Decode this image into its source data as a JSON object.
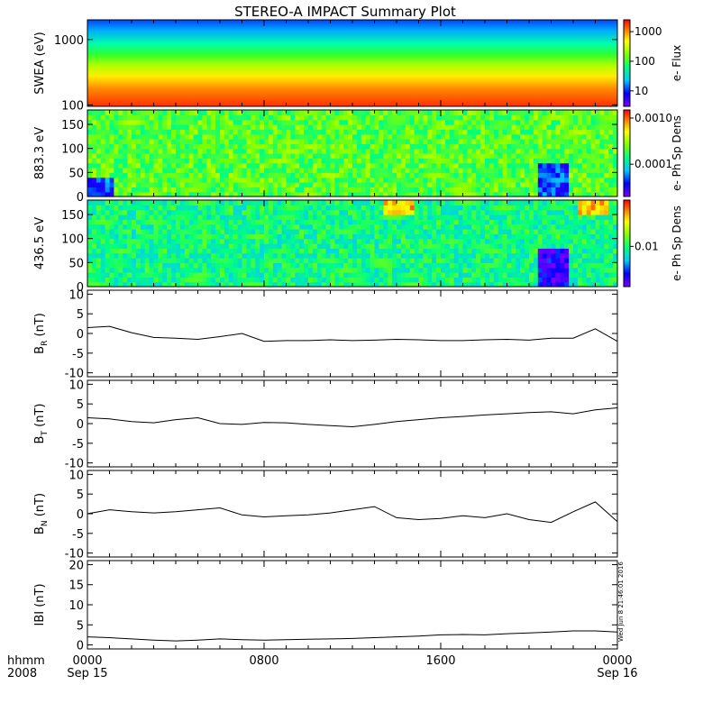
{
  "title": "STEREO-A IMPACT Summary Plot",
  "footer": {
    "time_label": "hhmm",
    "year_label": "2008",
    "timestamp": "Wed Jun  8 21:46:01 2016"
  },
  "chart_data": [
    {
      "type": "heatmap",
      "id": "swea",
      "ylabel": "SWEA (eV)",
      "ylog": true,
      "ylim": [
        95,
        2000
      ],
      "yticks": [
        100,
        1000
      ],
      "ytick_labels": [
        "100",
        "1000"
      ],
      "colorbar": {
        "label": "e- Flux",
        "log": true,
        "range": [
          3,
          2500
        ],
        "ticks": [
          10,
          100,
          1000
        ],
        "tick_labels": [
          "10",
          "100",
          "1000"
        ]
      },
      "description_of_values": "flux decreases smoothly with energy; ~1500 near 100 eV, ~200 at 400 eV, ~10 near 2000 eV",
      "energy_profile": [
        {
          "energy": 100,
          "flux": 1500
        },
        {
          "energy": 200,
          "flux": 600
        },
        {
          "energy": 400,
          "flux": 150
        },
        {
          "energy": 800,
          "flux": 50
        },
        {
          "energy": 1500,
          "flux": 12
        },
        {
          "energy": 2000,
          "flux": 6
        }
      ]
    },
    {
      "type": "heatmap",
      "id": "pad883",
      "ylabel": "883.3 eV",
      "ylim": [
        0,
        180
      ],
      "yticks": [
        0,
        50,
        100,
        150
      ],
      "ytick_labels": [
        "0",
        "50",
        "100",
        "150"
      ],
      "colorbar": {
        "label": "e- Ph Sp Dens",
        "log": true,
        "range": [
          2e-05,
          0.0015
        ],
        "ticks": [
          0.0001,
          0.001
        ],
        "tick_labels": [
          "0.0001",
          "0.0010"
        ]
      },
      "features": [
        {
          "x_hours": 21,
          "pitch_range": [
            0,
            70
          ],
          "level": "low"
        },
        {
          "x_hours": 0.5,
          "pitch_range": [
            0,
            40
          ],
          "level": "low"
        }
      ]
    },
    {
      "type": "heatmap",
      "id": "pad436",
      "ylabel": "436.5 eV",
      "ylim": [
        0,
        180
      ],
      "yticks": [
        0,
        50,
        100,
        150
      ],
      "ytick_labels": [
        "0",
        "50",
        "100",
        "150"
      ],
      "colorbar": {
        "label": "e- Ph Sp Dens",
        "log": true,
        "range": [
          0.003,
          0.04
        ],
        "ticks": [
          0.01
        ],
        "tick_labels": [
          "0.01"
        ]
      },
      "features": [
        {
          "x_hours": 21,
          "pitch_range": [
            0,
            80
          ],
          "level": "low"
        },
        {
          "x_hours": 22.8,
          "pitch_range": [
            150,
            180
          ],
          "level": "high"
        },
        {
          "x_hours": 14,
          "pitch_range": [
            150,
            180
          ],
          "level": "high"
        }
      ]
    },
    {
      "type": "line",
      "id": "br",
      "ylabel": "B",
      "ylabel_sub": "R",
      "ylabel_unit": " (nT)",
      "ylim": [
        -11,
        11
      ],
      "yticks": [
        -10,
        -5,
        0,
        5,
        10
      ],
      "ytick_labels": [
        "-10",
        "-5",
        "0",
        "5",
        "10"
      ],
      "x_hours": [
        0,
        1,
        2,
        3,
        4,
        5,
        6,
        7,
        8,
        9,
        10,
        11,
        12,
        13,
        14,
        15,
        16,
        17,
        18,
        19,
        20,
        21,
        22,
        23,
        24
      ],
      "values": [
        1.5,
        1.8,
        0.2,
        -1.0,
        -1.2,
        -1.5,
        -0.8,
        0.0,
        -2.0,
        -1.8,
        -1.8,
        -1.6,
        -1.8,
        -1.7,
        -1.5,
        -1.6,
        -1.8,
        -1.8,
        -1.6,
        -1.5,
        -1.7,
        -1.2,
        -1.2,
        1.2,
        -2.0
      ]
    },
    {
      "type": "line",
      "id": "bt",
      "ylabel": "B",
      "ylabel_sub": "T",
      "ylabel_unit": " (nT)",
      "ylim": [
        -11,
        11
      ],
      "yticks": [
        -10,
        -5,
        0,
        5,
        10
      ],
      "ytick_labels": [
        "-10",
        "-5",
        "0",
        "5",
        "10"
      ],
      "x_hours": [
        0,
        1,
        2,
        3,
        4,
        5,
        6,
        7,
        8,
        9,
        10,
        11,
        12,
        13,
        14,
        15,
        16,
        17,
        18,
        19,
        20,
        21,
        22,
        23,
        24
      ],
      "values": [
        1.5,
        1.2,
        0.5,
        0.2,
        1.0,
        1.5,
        0.0,
        -0.2,
        0.3,
        0.2,
        -0.2,
        -0.5,
        -0.8,
        -0.2,
        0.5,
        1.0,
        1.5,
        1.8,
        2.2,
        2.5,
        2.8,
        3.0,
        2.5,
        3.5,
        4.0
      ]
    },
    {
      "type": "line",
      "id": "bn",
      "ylabel": "B",
      "ylabel_sub": "N",
      "ylabel_unit": " (nT)",
      "ylim": [
        -11,
        11
      ],
      "yticks": [
        -10,
        -5,
        0,
        5,
        10
      ],
      "ytick_labels": [
        "-10",
        "-5",
        "0",
        "5",
        "10"
      ],
      "x_hours": [
        0,
        1,
        2,
        3,
        4,
        5,
        6,
        7,
        8,
        9,
        10,
        11,
        12,
        13,
        14,
        15,
        16,
        17,
        18,
        19,
        20,
        21,
        22,
        23,
        24
      ],
      "values": [
        0.0,
        1.0,
        0.5,
        0.2,
        0.5,
        1.0,
        1.5,
        -0.3,
        -0.8,
        -0.5,
        -0.3,
        0.2,
        1.0,
        1.8,
        -1.0,
        -1.5,
        -1.2,
        -0.5,
        -1.0,
        0.0,
        -1.5,
        -2.2,
        0.5,
        3.0,
        -2.0
      ]
    },
    {
      "type": "line",
      "id": "bmag",
      "ylabel": "IBI (nT)",
      "ylim": [
        -1,
        21
      ],
      "yticks": [
        0,
        5,
        10,
        15,
        20
      ],
      "ytick_labels": [
        "0",
        "5",
        "10",
        "15",
        "20"
      ],
      "x_hours": [
        0,
        1,
        2,
        3,
        4,
        5,
        6,
        7,
        8,
        9,
        10,
        11,
        12,
        13,
        14,
        15,
        16,
        17,
        18,
        19,
        20,
        21,
        22,
        23,
        24
      ],
      "values": [
        2.0,
        1.8,
        1.5,
        1.2,
        1.0,
        1.2,
        1.5,
        1.3,
        1.2,
        1.3,
        1.4,
        1.5,
        1.6,
        1.8,
        2.0,
        2.2,
        2.5,
        2.6,
        2.5,
        2.8,
        3.0,
        3.2,
        3.5,
        3.5,
        3.2
      ]
    }
  ],
  "x_axis": {
    "range_hours": [
      0,
      24
    ],
    "major_ticks_hours": [
      0,
      8,
      16,
      24
    ],
    "tick_labels": [
      "0000",
      "0800",
      "1600",
      "0000"
    ],
    "date_labels": [
      "Sep 15",
      "",
      "",
      "Sep 16"
    ],
    "minor_tick_step_hours": 1
  }
}
